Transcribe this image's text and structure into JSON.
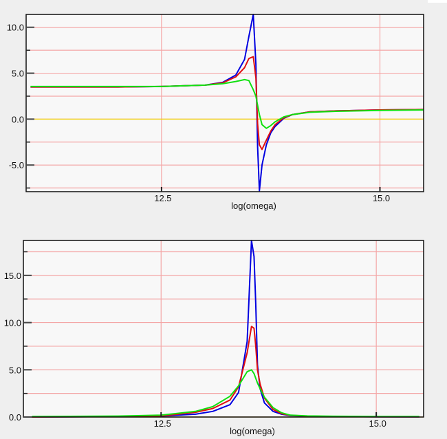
{
  "chart_data": [
    {
      "type": "line",
      "title": "",
      "xlabel": "log(omega)",
      "ylabel": "",
      "xlim": [
        10.95,
        15.5
      ],
      "ylim": [
        -7.9,
        11.4
      ],
      "x_ticks": [
        12.5,
        15.0
      ],
      "x_tick_labels": [
        "12.5",
        "15.0"
      ],
      "y_ticks": [
        -5.0,
        0.0,
        5.0,
        10.0
      ],
      "y_tick_labels": [
        "-5.0",
        "0.0",
        "5.0",
        "10.0"
      ],
      "y_minor_ticks": [
        -7.5,
        -2.5,
        2.5,
        7.5
      ],
      "grid": true,
      "grid_color": "#f4a6a6",
      "legend": null,
      "reference_line": {
        "y": 0.0,
        "color": "#f0d000"
      },
      "x": [
        11.0,
        12.0,
        12.5,
        13.0,
        13.2,
        13.35,
        13.45,
        13.5,
        13.55,
        13.58,
        13.6,
        13.62,
        13.65,
        13.7,
        13.75,
        13.8,
        13.9,
        14.0,
        14.2,
        14.5,
        15.0,
        15.5
      ],
      "series": [
        {
          "name": "blue",
          "color": "#0000e0",
          "values": [
            3.5,
            3.5,
            3.55,
            3.7,
            4.0,
            4.8,
            6.5,
            9.0,
            11.4,
            6.0,
            -3.0,
            -7.8,
            -5.0,
            -2.8,
            -1.5,
            -0.8,
            0.1,
            0.5,
            0.8,
            0.9,
            1.0,
            1.05
          ]
        },
        {
          "name": "red",
          "color": "#e01010",
          "values": [
            3.5,
            3.5,
            3.55,
            3.7,
            3.95,
            4.6,
            5.6,
            6.6,
            6.8,
            4.5,
            -0.5,
            -2.8,
            -3.3,
            -2.3,
            -1.3,
            -0.6,
            0.15,
            0.5,
            0.8,
            0.9,
            1.0,
            1.05
          ]
        },
        {
          "name": "green",
          "color": "#10e010",
          "values": [
            3.55,
            3.55,
            3.55,
            3.7,
            3.85,
            4.1,
            4.3,
            4.2,
            3.2,
            2.5,
            1.5,
            0.5,
            -0.6,
            -1.0,
            -0.7,
            -0.3,
            0.25,
            0.5,
            0.75,
            0.85,
            0.95,
            1.0
          ]
        }
      ]
    },
    {
      "type": "line",
      "title": "",
      "xlabel": "log(omega)",
      "ylabel": "",
      "xlim": [
        10.9,
        15.55
      ],
      "ylim": [
        0.0,
        18.7
      ],
      "x_ticks": [
        12.5,
        15.0
      ],
      "x_tick_labels": [
        "12.5",
        "15.0"
      ],
      "y_ticks": [
        0.0,
        5.0,
        10.0,
        15.0
      ],
      "y_tick_labels": [
        "0.0",
        "5.0",
        "10.0",
        "15.0"
      ],
      "y_minor_ticks": [
        2.5,
        7.5,
        12.5,
        17.5
      ],
      "grid": true,
      "grid_color": "#f4a6a6",
      "legend": null,
      "reference_line": {
        "y": 0.0,
        "color": "#f0d000"
      },
      "x": [
        11.0,
        12.0,
        12.5,
        12.9,
        13.1,
        13.3,
        13.4,
        13.5,
        13.55,
        13.58,
        13.6,
        13.62,
        13.65,
        13.7,
        13.8,
        13.9,
        14.0,
        14.2,
        14.5,
        15.0,
        15.5
      ],
      "series": [
        {
          "name": "blue",
          "color": "#0000e0",
          "values": [
            0.0,
            0.05,
            0.1,
            0.3,
            0.6,
            1.3,
            2.6,
            8.0,
            18.7,
            17.0,
            12.0,
            5.5,
            3.0,
            1.5,
            0.6,
            0.3,
            0.15,
            0.08,
            0.05,
            0.03,
            0.02
          ]
        },
        {
          "name": "red",
          "color": "#e01010",
          "values": [
            0.0,
            0.05,
            0.12,
            0.5,
            0.9,
            1.8,
            3.2,
            6.8,
            9.6,
            9.4,
            7.5,
            5.0,
            3.5,
            2.0,
            0.8,
            0.35,
            0.18,
            0.1,
            0.05,
            0.03,
            0.02
          ]
        },
        {
          "name": "green",
          "color": "#10e010",
          "values": [
            0.05,
            0.1,
            0.2,
            0.6,
            1.1,
            2.2,
            3.3,
            4.8,
            5.0,
            4.6,
            4.1,
            3.6,
            3.0,
            2.1,
            1.0,
            0.45,
            0.2,
            0.12,
            0.08,
            0.06,
            0.05
          ]
        }
      ]
    }
  ],
  "top_chart": {
    "xlabel": "log(omega)",
    "x_tick_labels": [
      "12.5",
      "15.0"
    ],
    "y_tick_labels": [
      "10.0",
      "5.0",
      "0.0",
      "-5.0"
    ]
  },
  "bottom_chart": {
    "xlabel": "log(omega)",
    "x_tick_labels": [
      "12.5",
      "15.0"
    ],
    "y_tick_labels": [
      "15.0",
      "10.0",
      "5.0",
      "0.0"
    ]
  }
}
